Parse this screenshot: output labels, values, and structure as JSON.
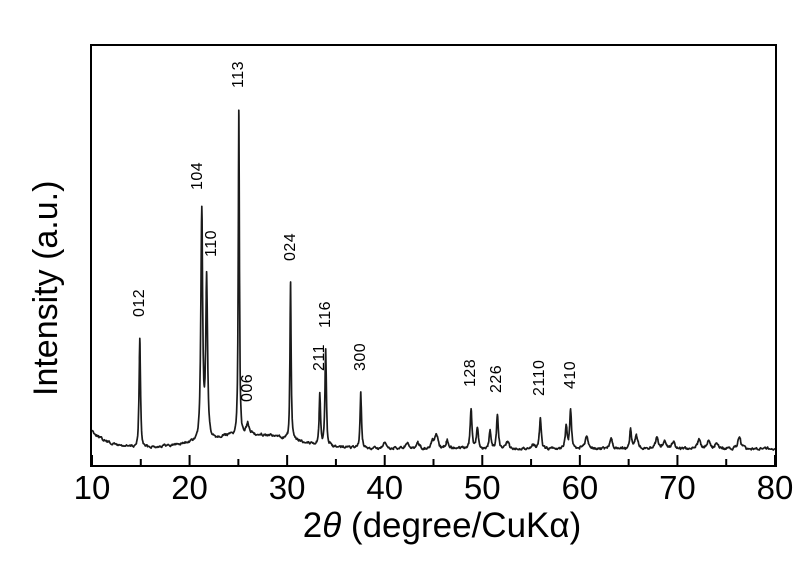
{
  "figure": {
    "background_color": "#ffffff",
    "frame_color": "#000000",
    "trace_color": "#1a1a1a",
    "text_color": "#000000"
  },
  "chart_data": {
    "type": "line",
    "description": "Powder X-ray diffraction pattern with indexed reflections",
    "xlabel": "2θ (degree/CuKα)",
    "xlabel_parts": {
      "prefix": "2",
      "theta": "θ",
      "rest": " (degree/CuKα)"
    },
    "ylabel": "Intensity (a.u.)",
    "xlim": [
      10,
      80
    ],
    "x_major_ticks": [
      10,
      20,
      30,
      40,
      50,
      60,
      70,
      80
    ],
    "x_minor_ticks": [
      15,
      25,
      35,
      45,
      55,
      65,
      75
    ],
    "y_axis_units": "arbitrary units (no tick labels)",
    "grid": false,
    "legend": false,
    "peaks": [
      {
        "two_theta": 14.9,
        "rel_intensity": 33.3,
        "hkl": "012"
      },
      {
        "two_theta": 21.25,
        "rel_intensity": 70.4,
        "hkl": "104"
      },
      {
        "two_theta": 21.75,
        "rel_intensity": 49.4,
        "hkl": "110"
      },
      {
        "two_theta": 25.05,
        "rel_intensity": 100.0,
        "hkl": "113"
      },
      {
        "two_theta": 25.95,
        "rel_intensity": 3.1,
        "hkl": "006"
      },
      {
        "two_theta": 30.35,
        "rel_intensity": 48.1,
        "hkl": "024"
      },
      {
        "two_theta": 33.35,
        "rel_intensity": 15.7,
        "hkl": "211"
      },
      {
        "two_theta": 33.95,
        "rel_intensity": 29.3,
        "hkl": "116"
      },
      {
        "two_theta": 37.55,
        "rel_intensity": 17.0,
        "hkl": "300"
      },
      {
        "two_theta": 48.85,
        "rel_intensity": 12.3,
        "hkl": "128"
      },
      {
        "two_theta": 51.55,
        "rel_intensity": 10.2,
        "hkl": "226"
      },
      {
        "two_theta": 55.95,
        "rel_intensity": 9.3,
        "hkl": "2110"
      },
      {
        "two_theta": 59.05,
        "rel_intensity": 11.7,
        "hkl": "410"
      }
    ],
    "minor_features": [
      {
        "two_theta": 40.0,
        "rel_intensity": 1.5
      },
      {
        "two_theta": 42.3,
        "rel_intensity": 1.5
      },
      {
        "two_theta": 43.4,
        "rel_intensity": 1.9
      },
      {
        "two_theta": 44.9,
        "rel_intensity": 2.2
      },
      {
        "two_theta": 45.3,
        "rel_intensity": 4.3
      },
      {
        "two_theta": 46.4,
        "rel_intensity": 2.5
      },
      {
        "two_theta": 49.5,
        "rel_intensity": 6.8
      },
      {
        "two_theta": 50.8,
        "rel_intensity": 5.6
      },
      {
        "two_theta": 52.6,
        "rel_intensity": 1.9
      },
      {
        "two_theta": 55.2,
        "rel_intensity": 1.2
      },
      {
        "two_theta": 58.6,
        "rel_intensity": 6.8
      },
      {
        "two_theta": 60.7,
        "rel_intensity": 3.7
      },
      {
        "two_theta": 63.2,
        "rel_intensity": 3.1
      },
      {
        "two_theta": 65.2,
        "rel_intensity": 5.9
      },
      {
        "two_theta": 65.8,
        "rel_intensity": 4.0
      },
      {
        "two_theta": 67.9,
        "rel_intensity": 3.4
      },
      {
        "two_theta": 68.7,
        "rel_intensity": 2.8
      },
      {
        "two_theta": 69.6,
        "rel_intensity": 2.2
      },
      {
        "two_theta": 72.2,
        "rel_intensity": 2.8
      },
      {
        "two_theta": 73.2,
        "rel_intensity": 2.5
      },
      {
        "two_theta": 74.0,
        "rel_intensity": 1.9
      },
      {
        "two_theta": 76.35,
        "rel_intensity": 3.7
      }
    ],
    "background": {
      "shape": "flat baseline with low-angle rise and broad hump",
      "low_angle_rise_rel": 5.6,
      "broad_hump_center_deg": 26,
      "broad_hump_height_rel": 4.6
    }
  }
}
